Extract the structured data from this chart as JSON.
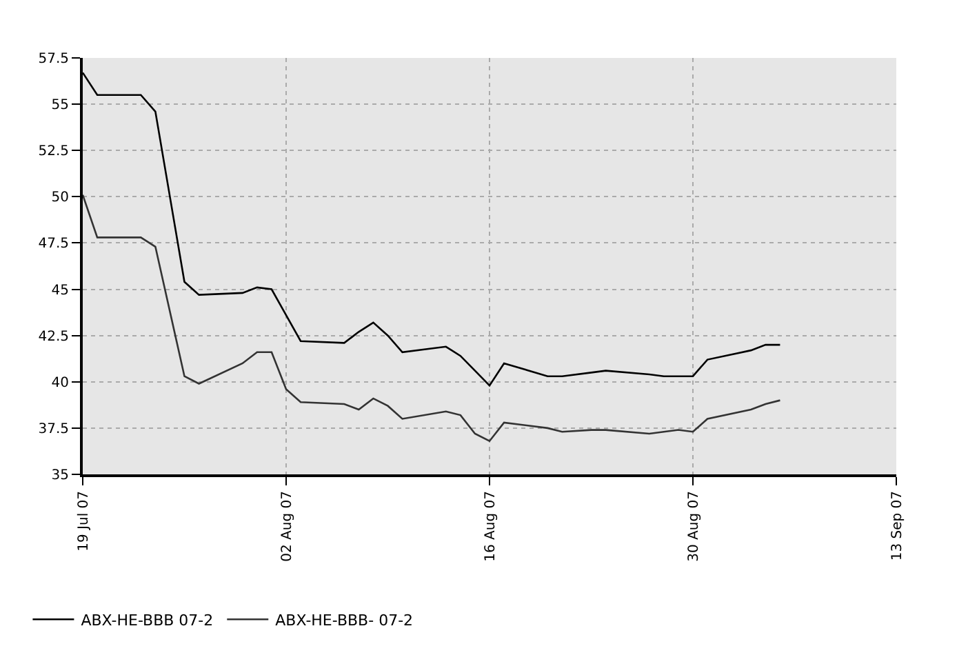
{
  "chart_data": {
    "type": "line",
    "x": [
      "2007-07-19",
      "2007-07-20",
      "2007-07-23",
      "2007-07-24",
      "2007-07-26",
      "2007-07-27",
      "2007-07-30",
      "2007-07-31",
      "2007-08-01",
      "2007-08-02",
      "2007-08-03",
      "2007-08-06",
      "2007-08-07",
      "2007-08-08",
      "2007-08-09",
      "2007-08-10",
      "2007-08-13",
      "2007-08-14",
      "2007-08-15",
      "2007-08-16",
      "2007-08-17",
      "2007-08-20",
      "2007-08-21",
      "2007-08-23",
      "2007-08-24",
      "2007-08-27",
      "2007-08-28",
      "2007-08-29",
      "2007-08-30",
      "2007-08-31",
      "2007-09-03",
      "2007-09-04",
      "2007-09-05"
    ],
    "series": [
      {
        "name": "ABX-HE-BBB 07-2",
        "color": "#000000",
        "values": [
          56.7,
          55.5,
          55.5,
          54.6,
          45.4,
          44.7,
          44.8,
          45.1,
          45.0,
          43.6,
          42.2,
          42.1,
          42.7,
          43.2,
          42.5,
          41.6,
          41.9,
          41.4,
          40.6,
          39.8,
          41.0,
          40.3,
          40.3,
          40.5,
          40.6,
          40.4,
          40.3,
          40.3,
          40.3,
          41.2,
          41.7,
          42.0,
          42.0
        ]
      },
      {
        "name": "ABX-HE-BBB- 07-2",
        "color": "#333333",
        "values": [
          50.1,
          47.8,
          47.8,
          47.3,
          40.3,
          39.9,
          41.0,
          41.6,
          41.6,
          39.6,
          38.9,
          38.8,
          38.5,
          39.1,
          38.7,
          38.0,
          38.4,
          38.2,
          37.2,
          36.8,
          37.8,
          37.5,
          37.3,
          37.4,
          37.4,
          37.2,
          37.3,
          37.4,
          37.3,
          38.0,
          38.5,
          38.8,
          39.0
        ]
      }
    ],
    "xlim": [
      "2007-07-19",
      "2007-09-13"
    ],
    "xticks": [
      {
        "value": "2007-07-19",
        "label": "19 Jul 07"
      },
      {
        "value": "2007-08-02",
        "label": "02 Aug 07"
      },
      {
        "value": "2007-08-16",
        "label": "16 Aug 07"
      },
      {
        "value": "2007-08-30",
        "label": "30 Aug 07"
      },
      {
        "value": "2007-09-13",
        "label": "13 Sep 07"
      }
    ],
    "ylim": [
      35,
      57.5
    ],
    "yticks": [
      35,
      37.5,
      40,
      42.5,
      45,
      47.5,
      50,
      52.5,
      55,
      57.5
    ],
    "grid": true,
    "legend": "bottom left",
    "marker": "none",
    "line_style": "solid"
  }
}
